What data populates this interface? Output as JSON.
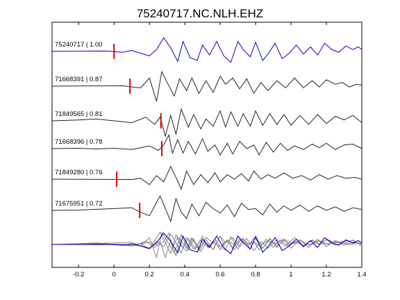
{
  "chart_data": {
    "type": "line",
    "title": "75240717.NC.NLH.EHZ",
    "xlabel": "",
    "ylabel": "",
    "xlim": [
      -0.35,
      1.4
    ],
    "xticks": [
      -0.2,
      0,
      0.2,
      0.4,
      0.6,
      0.8,
      1,
      1.2,
      1.4
    ],
    "xtick_labels": [
      "-0.2",
      "0",
      "0.2",
      "0.4",
      "0.6",
      "0.8",
      "1",
      "1.2",
      "1.4"
    ],
    "grid": false,
    "legend": "none",
    "colors": {
      "master": "#0000cc",
      "trace": "#222222",
      "stack_trace": "#888888",
      "pick": "#e00000",
      "axis": "#000000"
    },
    "traces": [
      {
        "label": "75240717 | 1.00",
        "color": "master",
        "pick": 0.0,
        "x": [
          -0.35,
          -0.05,
          0.05,
          0.1,
          0.15,
          0.2,
          0.24,
          0.28,
          0.32,
          0.36,
          0.39,
          0.43,
          0.47,
          0.5,
          0.54,
          0.58,
          0.62,
          0.66,
          0.7,
          0.73,
          0.77,
          0.8,
          0.84,
          0.87,
          0.91,
          0.95,
          0.99,
          1.03,
          1.07,
          1.11,
          1.15,
          1.19,
          1.23,
          1.27,
          1.31,
          1.35,
          1.38,
          1.4
        ],
        "y": [
          0,
          0.02,
          -0.05,
          0.05,
          -0.1,
          -0.25,
          0.1,
          0.75,
          0.2,
          -0.55,
          0.55,
          -0.35,
          -0.5,
          0.35,
          -0.2,
          0.55,
          -0.25,
          -0.6,
          0.55,
          0.1,
          -0.3,
          0.5,
          -0.5,
          -0.15,
          0.45,
          -0.4,
          -0.1,
          0.35,
          -0.15,
          0.25,
          -0.2,
          0.45,
          0.1,
          -0.05,
          0.3,
          0.1,
          0.25,
          0.1
        ]
      },
      {
        "label": "71668391 | 0.87",
        "color": "trace",
        "pick": 0.09,
        "x": [
          -0.35,
          0.05,
          0.1,
          0.15,
          0.2,
          0.24,
          0.27,
          0.3,
          0.34,
          0.37,
          0.41,
          0.44,
          0.48,
          0.52,
          0.56,
          0.6,
          0.63,
          0.67,
          0.71,
          0.75,
          0.79,
          0.83,
          0.87,
          0.92,
          0.97,
          1.02,
          1.07,
          1.12,
          1.16,
          1.2,
          1.25,
          1.29,
          1.33,
          1.37,
          1.4
        ],
        "y": [
          0,
          0.02,
          -0.05,
          -0.1,
          0.45,
          -0.85,
          0.8,
          0.2,
          -0.55,
          0.4,
          -0.25,
          0.45,
          -0.4,
          0.3,
          -0.35,
          0.55,
          0.1,
          0.45,
          -0.15,
          0.4,
          -0.4,
          0.2,
          -0.25,
          0.3,
          -0.1,
          0.45,
          -0.1,
          0.3,
          -0.05,
          0.35,
          0.1,
          0.2,
          -0.05,
          0.1,
          0.05
        ]
      },
      {
        "label": "71849565 | 0.81",
        "color": "trace",
        "pick": 0.265,
        "x": [
          -0.35,
          -0.2,
          -0.1,
          0.0,
          0.1,
          0.18,
          0.23,
          0.26,
          0.29,
          0.32,
          0.35,
          0.38,
          0.42,
          0.45,
          0.49,
          0.52,
          0.56,
          0.6,
          0.63,
          0.66,
          0.7,
          0.73,
          0.77,
          0.8,
          0.84,
          0.88,
          0.92,
          0.96,
          1.0,
          1.05,
          1.1,
          1.15,
          1.2,
          1.25,
          1.3,
          1.35,
          1.4
        ],
        "y": [
          0,
          0.05,
          0.1,
          0.0,
          -0.1,
          0.2,
          -0.2,
          0.2,
          -0.85,
          0.3,
          -0.75,
          0.65,
          -0.35,
          0.35,
          -0.45,
          0.1,
          -0.3,
          0.55,
          -0.35,
          0.5,
          -0.3,
          0.4,
          -0.3,
          0.55,
          -0.25,
          0.4,
          -0.2,
          0.35,
          -0.25,
          0.3,
          -0.2,
          0.35,
          -0.15,
          0.25,
          0.05,
          0.3,
          -0.1
        ]
      },
      {
        "label": "71668396 | 0.78",
        "color": "trace",
        "pick": 0.27,
        "x": [
          -0.35,
          -0.2,
          -0.1,
          0.0,
          0.1,
          0.2,
          0.25,
          0.28,
          0.31,
          0.33,
          0.36,
          0.39,
          0.42,
          0.46,
          0.5,
          0.53,
          0.57,
          0.6,
          0.64,
          0.67,
          0.71,
          0.75,
          0.79,
          0.82,
          0.86,
          0.9,
          0.94,
          0.98,
          1.02,
          1.07,
          1.12,
          1.16,
          1.2,
          1.25,
          1.3,
          1.35,
          1.4
        ],
        "y": [
          0,
          0.02,
          -0.02,
          0.02,
          -0.05,
          0.15,
          -0.1,
          0.2,
          0.75,
          -0.25,
          0.5,
          -0.25,
          0.4,
          -0.3,
          0.55,
          -0.15,
          0.2,
          -0.35,
          0.3,
          -0.3,
          0.4,
          0.0,
          0.2,
          -0.35,
          0.35,
          -0.2,
          0.3,
          -0.1,
          0.15,
          -0.05,
          0.25,
          0.05,
          0.3,
          -0.05,
          0.2,
          0.25,
          0.0
        ]
      },
      {
        "label": "71849280 | 0.76",
        "color": "trace",
        "pick": 0.015,
        "x": [
          -0.35,
          0.1,
          0.15,
          0.2,
          0.24,
          0.28,
          0.32,
          0.35,
          0.38,
          0.41,
          0.45,
          0.49,
          0.53,
          0.57,
          0.6,
          0.64,
          0.68,
          0.72,
          0.76,
          0.79,
          0.83,
          0.87,
          0.91,
          0.96,
          1.01,
          1.06,
          1.11,
          1.16,
          1.21,
          1.26,
          1.31,
          1.36,
          1.4
        ],
        "y": [
          0,
          -0.02,
          0.05,
          -0.3,
          0.2,
          -0.15,
          0.7,
          0.1,
          -0.55,
          0.45,
          -0.3,
          0.25,
          -0.2,
          0.35,
          -0.15,
          0.25,
          0.0,
          0.3,
          -0.1,
          0.45,
          0.0,
          0.25,
          0.05,
          0.35,
          0.05,
          0.2,
          -0.05,
          0.25,
          0.0,
          0.2,
          0.05,
          0.1,
          0.0
        ]
      },
      {
        "label": "71675951 | 0.72",
        "color": "trace",
        "pick": 0.145,
        "x": [
          -0.35,
          -0.2,
          0.0,
          0.1,
          0.15,
          0.2,
          0.23,
          0.26,
          0.29,
          0.32,
          0.35,
          0.38,
          0.41,
          0.44,
          0.48,
          0.52,
          0.56,
          0.6,
          0.64,
          0.68,
          0.72,
          0.76,
          0.8,
          0.84,
          0.88,
          0.92,
          0.96,
          1.0,
          1.05,
          1.1,
          1.15,
          1.2,
          1.25,
          1.3,
          1.35,
          1.4
        ],
        "y": [
          0,
          0.02,
          0.1,
          0.15,
          -0.1,
          -0.3,
          0.25,
          0.8,
          0.1,
          -0.6,
          0.65,
          -0.1,
          -0.45,
          0.35,
          -0.3,
          0.45,
          0.1,
          -0.15,
          0.3,
          -0.35,
          0.4,
          0.05,
          0.1,
          -0.25,
          0.35,
          -0.1,
          0.25,
          0.0,
          0.3,
          -0.05,
          0.25,
          0.0,
          0.2,
          -0.05,
          0.15,
          0.05
        ]
      }
    ]
  }
}
